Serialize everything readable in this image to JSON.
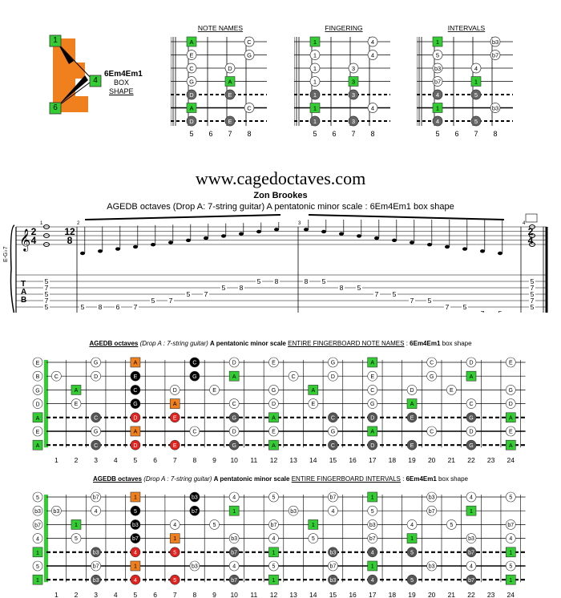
{
  "shape_logo": {
    "letter": "E",
    "badges": [
      "1",
      "4",
      "6"
    ],
    "name_line": "6Em4Em1",
    "box_line": "BOX",
    "shape_line": "SHAPE",
    "color_orange": "#f07f1e",
    "color_green": "#33cc33"
  },
  "small_diagrams": {
    "frets": [
      "5",
      "6",
      "7",
      "8"
    ],
    "panels": [
      {
        "title": "NOTE NAMES",
        "rows": [
          [
            "A",
            "",
            "",
            "C"
          ],
          [
            "E",
            "",
            "",
            "G"
          ],
          [
            "C",
            "",
            "D",
            ""
          ],
          [
            "G",
            "",
            "A",
            ""
          ],
          [
            "D",
            "",
            "E",
            ""
          ],
          [
            "A",
            "",
            "",
            "C"
          ],
          [
            "D",
            "",
            "E",
            ""
          ]
        ]
      },
      {
        "title": "FINGERING",
        "rows": [
          [
            "1",
            "",
            "",
            "4"
          ],
          [
            "1",
            "",
            "",
            "4"
          ],
          [
            "1",
            "",
            "3",
            ""
          ],
          [
            "1",
            "",
            "3",
            ""
          ],
          [
            "1",
            "",
            "3",
            ""
          ],
          [
            "1",
            "",
            "",
            "4"
          ],
          [
            "1",
            "",
            "3",
            ""
          ]
        ]
      },
      {
        "title": "INTERVALS",
        "rows": [
          [
            "1",
            "",
            "",
            "b3"
          ],
          [
            "5",
            "",
            "",
            "b7"
          ],
          [
            "b3",
            "",
            "4",
            ""
          ],
          [
            "b7",
            "",
            "1",
            ""
          ],
          [
            "4",
            "",
            "5",
            ""
          ],
          [
            "1",
            "",
            "",
            "b3"
          ],
          [
            "4",
            "",
            "5",
            ""
          ]
        ]
      }
    ]
  },
  "header": {
    "site": "www.cagedoctaves.com",
    "author": "Zon Brookes",
    "subtitle": "AGEDB octaves (Drop A: 7-string guitar) A pentatonic minor scale : 6Em4Em1 box shape"
  },
  "notation": {
    "clef_label": "E-G♭7",
    "measure_numbers": [
      "1",
      "2",
      "3",
      "4"
    ],
    "time_sig_1": [
      "2",
      "4"
    ],
    "time_sig_2": [
      "12",
      "8"
    ],
    "time_sig_3": [
      "2",
      "4"
    ],
    "tab_letters": [
      "T",
      "A",
      "B"
    ],
    "chord1": [
      "5",
      "7",
      "5",
      "7",
      "5"
    ],
    "run_up": [
      [
        "5",
        "5"
      ],
      [
        "5",
        "8"
      ],
      [
        "5",
        "6"
      ],
      [
        "5",
        "7"
      ],
      [
        "4",
        "5"
      ],
      [
        "4",
        "7"
      ],
      [
        "3",
        "5"
      ],
      [
        "3",
        "7"
      ],
      [
        "2",
        "5"
      ],
      [
        "2",
        "8"
      ],
      [
        "1",
        "5"
      ],
      [
        "1",
        "8"
      ]
    ],
    "run_down": [
      [
        "1",
        "8"
      ],
      [
        "1",
        "5"
      ],
      [
        "2",
        "8"
      ],
      [
        "2",
        "5"
      ],
      [
        "3",
        "7"
      ],
      [
        "3",
        "5"
      ],
      [
        "4",
        "7"
      ],
      [
        "4",
        "5"
      ],
      [
        "5",
        "7"
      ],
      [
        "5",
        "5"
      ],
      [
        "6",
        "7"
      ],
      [
        "6",
        "5"
      ]
    ],
    "chord2": [
      "5",
      "7",
      "5",
      "7",
      "5"
    ]
  },
  "full_notes": {
    "title_bold": "AGEDB octaves",
    "title_paren": "(Drop A : 7-string guitar)",
    "title_scale": "A pentatonic minor scale",
    "title_mode": "ENTIRE FINGERBOARD NOTE NAMES",
    "title_shape": "6Em4Em1",
    "title_tail": "box shape",
    "open": [
      "E",
      "B",
      "G",
      "D",
      "A",
      "E",
      "A"
    ],
    "frets": [
      "1",
      "2",
      "3",
      "4",
      "5",
      "6",
      "7",
      "8",
      "9",
      "10",
      "11",
      "12",
      "13",
      "14",
      "15",
      "16",
      "17",
      "18",
      "19",
      "20",
      "21",
      "22",
      "23",
      "24"
    ]
  },
  "full_intervals": {
    "title_bold": "AGEDB octaves",
    "title_paren": "(Drop A : 7-string guitar)",
    "title_scale": "A pentatonic minor scale",
    "title_mode": "ENTIRE FINGERBOARD INTERVALS",
    "title_shape": "6Em4Em1",
    "title_tail": "box shape",
    "open": [
      "5",
      "b3",
      "b7",
      "4",
      "1",
      "5",
      "1"
    ],
    "frets": [
      "1",
      "2",
      "3",
      "4",
      "5",
      "6",
      "7",
      "8",
      "9",
      "10",
      "11",
      "12",
      "13",
      "14",
      "15",
      "16",
      "17",
      "18",
      "19",
      "20",
      "21",
      "22",
      "23",
      "24"
    ]
  }
}
